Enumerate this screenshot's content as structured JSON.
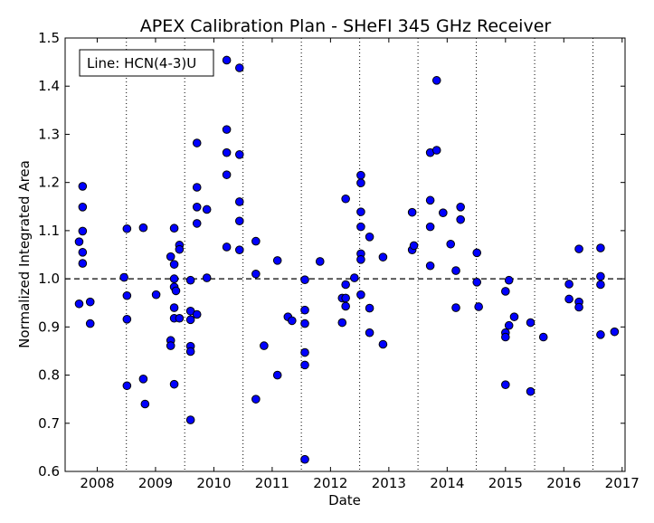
{
  "chart_data": {
    "type": "scatter",
    "title": "APEX Calibration Plan - SHeFI 345 GHz Receiver",
    "xlabel": "Date",
    "ylabel": "Normalized Integrated Area",
    "legend_text": "Line: HCN(4-3)U",
    "legend_placement": "top-left",
    "xlim": [
      2007.45,
      2017.05
    ],
    "ylim": [
      0.6,
      1.5
    ],
    "x_ticks": [
      2008,
      2009,
      2010,
      2011,
      2012,
      2013,
      2014,
      2015,
      2016,
      2017
    ],
    "x_tick_labels": [
      "2008",
      "2009",
      "2010",
      "2011",
      "2012",
      "2013",
      "2014",
      "2015",
      "2016",
      "2017"
    ],
    "y_ticks": [
      0.6,
      0.7,
      0.8,
      0.9,
      1.0,
      1.1,
      1.2,
      1.3,
      1.4,
      1.5
    ],
    "y_tick_labels": [
      "0.6",
      "0.7",
      "0.8",
      "0.9",
      "1.0",
      "1.1",
      "1.2",
      "1.3",
      "1.4",
      "1.5"
    ],
    "vertical_dotted_lines_x": [
      2008.5,
      2009.5,
      2010.5,
      2011.5,
      2012.5,
      2013.5,
      2014.5,
      2015.5,
      2016.5
    ],
    "reference_line_y": 1.0,
    "marker_color": "#0000ff",
    "marker_edge_color": "#000000",
    "grid": false,
    "points": [
      [
        2007.69,
        1.077
      ],
      [
        2007.69,
        0.948
      ],
      [
        2007.75,
        1.192
      ],
      [
        2007.75,
        1.149
      ],
      [
        2007.75,
        1.099
      ],
      [
        2007.75,
        1.055
      ],
      [
        2007.75,
        1.032
      ],
      [
        2007.88,
        0.952
      ],
      [
        2007.88,
        0.907
      ],
      [
        2008.46,
        1.003
      ],
      [
        2008.51,
        1.104
      ],
      [
        2008.51,
        0.965
      ],
      [
        2008.51,
        0.916
      ],
      [
        2008.51,
        0.778
      ],
      [
        2008.79,
        1.106
      ],
      [
        2008.79,
        0.792
      ],
      [
        2008.82,
        0.74
      ],
      [
        2009.01,
        0.967
      ],
      [
        2009.26,
        1.046
      ],
      [
        2009.26,
        0.872
      ],
      [
        2009.26,
        0.861
      ],
      [
        2009.32,
        1.105
      ],
      [
        2009.32,
        1.03
      ],
      [
        2009.32,
        1.0
      ],
      [
        2009.32,
        0.983
      ],
      [
        2009.32,
        0.94
      ],
      [
        2009.32,
        0.918
      ],
      [
        2009.32,
        0.781
      ],
      [
        2009.35,
        0.975
      ],
      [
        2009.41,
        1.07
      ],
      [
        2009.41,
        1.061
      ],
      [
        2009.41,
        0.918
      ],
      [
        2009.6,
        0.997
      ],
      [
        2009.6,
        0.933
      ],
      [
        2009.6,
        0.915
      ],
      [
        2009.6,
        0.86
      ],
      [
        2009.6,
        0.849
      ],
      [
        2009.6,
        0.707
      ],
      [
        2009.71,
        1.282
      ],
      [
        2009.71,
        1.19
      ],
      [
        2009.71,
        1.149
      ],
      [
        2009.71,
        1.115
      ],
      [
        2009.71,
        0.926
      ],
      [
        2009.88,
        1.144
      ],
      [
        2009.88,
        1.002
      ],
      [
        2010.22,
        1.454
      ],
      [
        2010.22,
        1.31
      ],
      [
        2010.22,
        1.262
      ],
      [
        2010.22,
        1.216
      ],
      [
        2010.22,
        1.066
      ],
      [
        2010.44,
        1.438
      ],
      [
        2010.44,
        1.258
      ],
      [
        2010.44,
        1.16
      ],
      [
        2010.44,
        1.12
      ],
      [
        2010.44,
        1.06
      ],
      [
        2010.72,
        1.078
      ],
      [
        2010.72,
        1.01
      ],
      [
        2010.72,
        0.75
      ],
      [
        2010.86,
        0.861
      ],
      [
        2011.09,
        1.038
      ],
      [
        2011.09,
        0.8
      ],
      [
        2011.27,
        0.921
      ],
      [
        2011.34,
        0.913
      ],
      [
        2011.56,
        0.998
      ],
      [
        2011.56,
        0.935
      ],
      [
        2011.56,
        0.907
      ],
      [
        2011.56,
        0.847
      ],
      [
        2011.56,
        0.821
      ],
      [
        2011.56,
        0.625
      ],
      [
        2011.82,
        1.036
      ],
      [
        2012.2,
        0.96
      ],
      [
        2012.2,
        0.909
      ],
      [
        2012.26,
        1.166
      ],
      [
        2012.26,
        0.988
      ],
      [
        2012.26,
        0.96
      ],
      [
        2012.26,
        0.943
      ],
      [
        2012.41,
        1.002
      ],
      [
        2012.52,
        1.215
      ],
      [
        2012.52,
        1.199
      ],
      [
        2012.52,
        1.139
      ],
      [
        2012.52,
        1.108
      ],
      [
        2012.52,
        1.052
      ],
      [
        2012.52,
        1.04
      ],
      [
        2012.52,
        0.967
      ],
      [
        2012.67,
        1.087
      ],
      [
        2012.67,
        0.939
      ],
      [
        2012.67,
        0.888
      ],
      [
        2012.9,
        1.045
      ],
      [
        2012.9,
        0.864
      ],
      [
        2013.4,
        1.138
      ],
      [
        2013.4,
        1.06
      ],
      [
        2013.43,
        1.069
      ],
      [
        2013.71,
        1.262
      ],
      [
        2013.71,
        1.163
      ],
      [
        2013.71,
        1.108
      ],
      [
        2013.71,
        1.027
      ],
      [
        2013.82,
        1.412
      ],
      [
        2013.82,
        1.267
      ],
      [
        2013.93,
        1.137
      ],
      [
        2014.06,
        1.072
      ],
      [
        2014.15,
        1.017
      ],
      [
        2014.15,
        0.94
      ],
      [
        2014.23,
        1.149
      ],
      [
        2014.23,
        1.123
      ],
      [
        2014.51,
        1.054
      ],
      [
        2014.51,
        0.993
      ],
      [
        2014.54,
        0.942
      ],
      [
        2015.0,
        0.974
      ],
      [
        2015.0,
        0.888
      ],
      [
        2015.0,
        0.879
      ],
      [
        2015.0,
        0.78
      ],
      [
        2015.06,
        0.997
      ],
      [
        2015.06,
        0.903
      ],
      [
        2015.15,
        0.921
      ],
      [
        2015.43,
        0.909
      ],
      [
        2015.43,
        0.766
      ],
      [
        2015.65,
        0.879
      ],
      [
        2016.09,
        0.989
      ],
      [
        2016.09,
        0.958
      ],
      [
        2016.26,
        1.062
      ],
      [
        2016.26,
        0.952
      ],
      [
        2016.26,
        0.941
      ],
      [
        2016.63,
        1.064
      ],
      [
        2016.63,
        1.005
      ],
      [
        2016.63,
        0.988
      ],
      [
        2016.63,
        0.884
      ],
      [
        2016.87,
        0.89
      ]
    ]
  }
}
